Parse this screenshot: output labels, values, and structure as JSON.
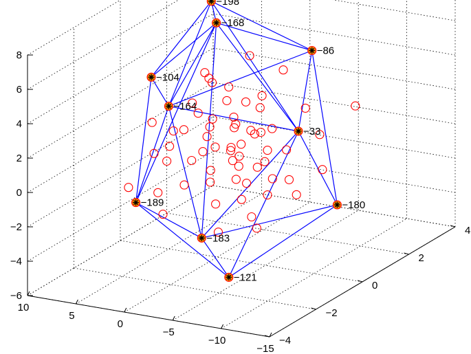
{
  "chart_data": {
    "type": "scatter",
    "title": "",
    "xlabel": "",
    "ylabel": "",
    "zlabel": "",
    "grid": true,
    "colors": {
      "points": "#ff0000",
      "hull": "#0000ff",
      "vertex_marker": "#000000",
      "vertex_fill": "#ff8c00"
    },
    "axes": {
      "z_ticks": [
        "8",
        "6",
        "4",
        "2",
        "0",
        "−2",
        "−4",
        "−6"
      ],
      "left_ticks": [
        "10",
        "5",
        "0",
        "−5",
        "−10",
        "−15"
      ],
      "right_ticks": [
        "−4",
        "−2",
        "0",
        "2",
        "4"
      ]
    },
    "hull_vertices": [
      {
        "id": "−198",
        "x": 3,
        "y": 1,
        "z": 7.8
      },
      {
        "id": "−168",
        "x": 2,
        "y": 0.8,
        "z": 6.8
      },
      {
        "id": "−86",
        "x": -5,
        "y": 2,
        "z": 4.9
      },
      {
        "id": "−104",
        "x": 8,
        "y": 0.5,
        "z": 3.3
      },
      {
        "id": "−164",
        "x": 5,
        "y": 0,
        "z": 2.3
      },
      {
        "id": "−33",
        "x": -6,
        "y": 1,
        "z": 1.1
      },
      {
        "id": "−189",
        "x": 6,
        "y": -1,
        "z": -2.6
      },
      {
        "id": "−183",
        "x": -2,
        "y": -1.5,
        "z": -3.5
      },
      {
        "id": "−180",
        "x": -10,
        "y": 1,
        "z": -2.8
      },
      {
        "id": "−121",
        "x": -6,
        "y": -2,
        "z": -5
      }
    ],
    "hull_edges": [
      [
        "−198",
        "−168"
      ],
      [
        "−198",
        "−86"
      ],
      [
        "−198",
        "−104"
      ],
      [
        "−198",
        "−164"
      ],
      [
        "−198",
        "−33"
      ],
      [
        "−168",
        "−104"
      ],
      [
        "−168",
        "−164"
      ],
      [
        "−168",
        "−86"
      ],
      [
        "−168",
        "−33"
      ],
      [
        "−168",
        "−183"
      ],
      [
        "−168",
        "−189"
      ],
      [
        "−104",
        "−164"
      ],
      [
        "−104",
        "−189"
      ],
      [
        "−164",
        "−189"
      ],
      [
        "−164",
        "−86"
      ],
      [
        "−164",
        "−33"
      ],
      [
        "−164",
        "−183"
      ],
      [
        "−86",
        "−33"
      ],
      [
        "−86",
        "−180"
      ],
      [
        "−33",
        "−180"
      ],
      [
        "−33",
        "−183"
      ],
      [
        "−33",
        "−121"
      ],
      [
        "−189",
        "−183"
      ],
      [
        "−189",
        "−121"
      ],
      [
        "−183",
        "−121"
      ],
      [
        "−121",
        "−180"
      ],
      [
        "−183",
        "−180"
      ]
    ],
    "points": [
      {
        "x": 2,
        "y": 0.3,
        "z": 4.3
      },
      {
        "x": 1,
        "y": 0.2,
        "z": 3.9
      },
      {
        "x": 0,
        "y": 0.5,
        "z": 3.5
      },
      {
        "x": -1,
        "y": 0,
        "z": 3.2
      },
      {
        "x": -2,
        "y": 0.4,
        "z": 2.9
      },
      {
        "x": -3,
        "y": 0.6,
        "z": 2.5
      },
      {
        "x": 1,
        "y": -0.4,
        "z": 2.6
      },
      {
        "x": 0,
        "y": -0.2,
        "z": 2.2
      },
      {
        "x": -1,
        "y": 0.3,
        "z": 2
      },
      {
        "x": -2,
        "y": -0.1,
        "z": 1.8
      },
      {
        "x": -3,
        "y": 0.2,
        "z": 1.5
      },
      {
        "x": -4,
        "y": 0.7,
        "z": 1.3
      },
      {
        "x": 2,
        "y": -0.6,
        "z": 1.7
      },
      {
        "x": 1,
        "y": 0.1,
        "z": 1.4
      },
      {
        "x": 0,
        "y": 0.8,
        "z": 1.1
      },
      {
        "x": -1,
        "y": -0.5,
        "z": 0.9
      },
      {
        "x": -2,
        "y": 0.2,
        "z": 0.6
      },
      {
        "x": -3,
        "y": -0.3,
        "z": 0.4
      },
      {
        "x": -4,
        "y": 0.5,
        "z": 0.2
      },
      {
        "x": -5,
        "y": 0.9,
        "z": 0
      },
      {
        "x": 3,
        "y": -0.8,
        "z": 0.8
      },
      {
        "x": 2,
        "y": 0.4,
        "z": 0.5
      },
      {
        "x": 1,
        "y": -0.2,
        "z": 0.2
      },
      {
        "x": 0,
        "y": 0.6,
        "z": -0.1
      },
      {
        "x": -1,
        "y": -0.7,
        "z": -0.3
      },
      {
        "x": -2,
        "y": 0.1,
        "z": -0.6
      },
      {
        "x": -3,
        "y": 0.8,
        "z": -0.8
      },
      {
        "x": -4,
        "y": -0.4,
        "z": -1
      },
      {
        "x": -5,
        "y": 0.3,
        "z": -1.2
      },
      {
        "x": -6,
        "y": 0.6,
        "z": -1.4
      },
      {
        "x": 1,
        "y": -1,
        "z": -1.1
      },
      {
        "x": 0,
        "y": -0.3,
        "z": -1.4
      },
      {
        "x": -1,
        "y": 0.4,
        "z": -1.7
      },
      {
        "x": -2,
        "y": -0.9,
        "z": -2
      },
      {
        "x": -3,
        "y": -0.2,
        "z": -2.2
      },
      {
        "x": -4,
        "y": 0.5,
        "z": -2.4
      },
      {
        "x": -5,
        "y": -0.6,
        "z": -2.7
      },
      {
        "x": 4,
        "y": -0.5,
        "z": -0.4
      },
      {
        "x": 5,
        "y": 0.2,
        "z": 0.7
      },
      {
        "x": 4,
        "y": 0.6,
        "z": 2.1
      },
      {
        "x": 3,
        "y": 0.9,
        "z": 3.4
      },
      {
        "x": -6,
        "y": 1.3,
        "z": 2.2
      },
      {
        "x": -7,
        "y": 1.5,
        "z": 0.6
      },
      {
        "x": -8,
        "y": 1.2,
        "z": -1.1
      },
      {
        "x": -7,
        "y": 0.5,
        "z": -2.1
      },
      {
        "x": -6,
        "y": -0.8,
        "z": -3.1
      },
      {
        "x": -3,
        "y": -1.2,
        "z": -3.3
      },
      {
        "x": 2,
        "y": -1.5,
        "z": -2.5
      },
      {
        "x": 3,
        "y": -1.3,
        "z": -1.5
      },
      {
        "x": 6,
        "y": -0.3,
        "z": 1.5
      },
      {
        "x": 7,
        "y": 0.2,
        "z": -0.8
      },
      {
        "x": 7,
        "y": -0.9,
        "z": -1.9
      },
      {
        "x": 0,
        "y": 1.4,
        "z": 4.6
      },
      {
        "x": -3,
        "y": 1.6,
        "z": 3.9
      },
      {
        "x": -9,
        "y": 2.2,
        "z": 1.9
      },
      {
        "x": -2,
        "y": 1.1,
        "z": 2.7
      },
      {
        "x": -1,
        "y": 1.2,
        "z": 0.3
      },
      {
        "x": 1,
        "y": 1,
        "z": -0.7
      },
      {
        "x": 0,
        "y": -1.1,
        "z": 0.5
      },
      {
        "x": -4,
        "y": -1,
        "z": 0.8
      },
      {
        "x": -5,
        "y": -0.2,
        "z": 1.9
      },
      {
        "x": -2,
        "y": 0.9,
        "z": -1.3
      }
    ]
  }
}
